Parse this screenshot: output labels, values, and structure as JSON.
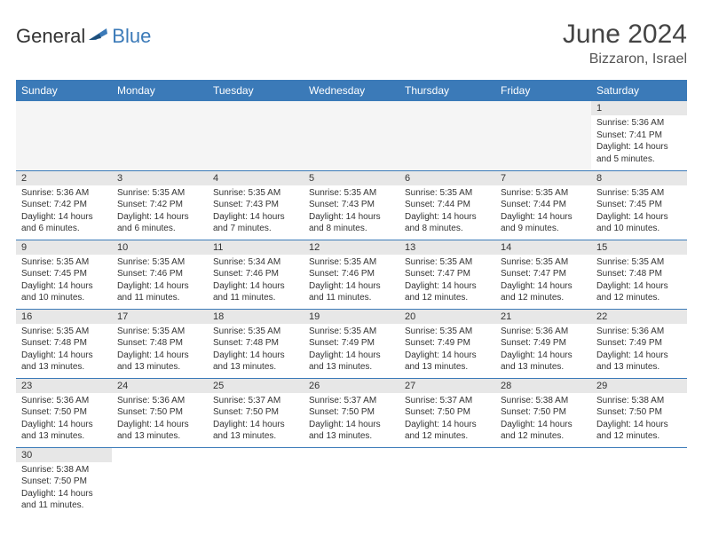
{
  "logo": {
    "general": "General",
    "blue": "Blue"
  },
  "header": {
    "month_title": "June 2024",
    "location": "Bizzaron, Israel"
  },
  "colors": {
    "header_bg": "#3b7ab8",
    "header_fg": "#ffffff",
    "daynum_bg": "#e7e7e7",
    "row_divider": "#3b7ab8",
    "text": "#333333"
  },
  "weekdays": [
    "Sunday",
    "Monday",
    "Tuesday",
    "Wednesday",
    "Thursday",
    "Friday",
    "Saturday"
  ],
  "weeks": [
    [
      null,
      null,
      null,
      null,
      null,
      null,
      {
        "n": "1",
        "sr": "5:36 AM",
        "ss": "7:41 PM",
        "dl": "14 hours and 5 minutes."
      }
    ],
    [
      {
        "n": "2",
        "sr": "5:36 AM",
        "ss": "7:42 PM",
        "dl": "14 hours and 6 minutes."
      },
      {
        "n": "3",
        "sr": "5:35 AM",
        "ss": "7:42 PM",
        "dl": "14 hours and 6 minutes."
      },
      {
        "n": "4",
        "sr": "5:35 AM",
        "ss": "7:43 PM",
        "dl": "14 hours and 7 minutes."
      },
      {
        "n": "5",
        "sr": "5:35 AM",
        "ss": "7:43 PM",
        "dl": "14 hours and 8 minutes."
      },
      {
        "n": "6",
        "sr": "5:35 AM",
        "ss": "7:44 PM",
        "dl": "14 hours and 8 minutes."
      },
      {
        "n": "7",
        "sr": "5:35 AM",
        "ss": "7:44 PM",
        "dl": "14 hours and 9 minutes."
      },
      {
        "n": "8",
        "sr": "5:35 AM",
        "ss": "7:45 PM",
        "dl": "14 hours and 10 minutes."
      }
    ],
    [
      {
        "n": "9",
        "sr": "5:35 AM",
        "ss": "7:45 PM",
        "dl": "14 hours and 10 minutes."
      },
      {
        "n": "10",
        "sr": "5:35 AM",
        "ss": "7:46 PM",
        "dl": "14 hours and 11 minutes."
      },
      {
        "n": "11",
        "sr": "5:34 AM",
        "ss": "7:46 PM",
        "dl": "14 hours and 11 minutes."
      },
      {
        "n": "12",
        "sr": "5:35 AM",
        "ss": "7:46 PM",
        "dl": "14 hours and 11 minutes."
      },
      {
        "n": "13",
        "sr": "5:35 AM",
        "ss": "7:47 PM",
        "dl": "14 hours and 12 minutes."
      },
      {
        "n": "14",
        "sr": "5:35 AM",
        "ss": "7:47 PM",
        "dl": "14 hours and 12 minutes."
      },
      {
        "n": "15",
        "sr": "5:35 AM",
        "ss": "7:48 PM",
        "dl": "14 hours and 12 minutes."
      }
    ],
    [
      {
        "n": "16",
        "sr": "5:35 AM",
        "ss": "7:48 PM",
        "dl": "14 hours and 13 minutes."
      },
      {
        "n": "17",
        "sr": "5:35 AM",
        "ss": "7:48 PM",
        "dl": "14 hours and 13 minutes."
      },
      {
        "n": "18",
        "sr": "5:35 AM",
        "ss": "7:48 PM",
        "dl": "14 hours and 13 minutes."
      },
      {
        "n": "19",
        "sr": "5:35 AM",
        "ss": "7:49 PM",
        "dl": "14 hours and 13 minutes."
      },
      {
        "n": "20",
        "sr": "5:35 AM",
        "ss": "7:49 PM",
        "dl": "14 hours and 13 minutes."
      },
      {
        "n": "21",
        "sr": "5:36 AM",
        "ss": "7:49 PM",
        "dl": "14 hours and 13 minutes."
      },
      {
        "n": "22",
        "sr": "5:36 AM",
        "ss": "7:49 PM",
        "dl": "14 hours and 13 minutes."
      }
    ],
    [
      {
        "n": "23",
        "sr": "5:36 AM",
        "ss": "7:50 PM",
        "dl": "14 hours and 13 minutes."
      },
      {
        "n": "24",
        "sr": "5:36 AM",
        "ss": "7:50 PM",
        "dl": "14 hours and 13 minutes."
      },
      {
        "n": "25",
        "sr": "5:37 AM",
        "ss": "7:50 PM",
        "dl": "14 hours and 13 minutes."
      },
      {
        "n": "26",
        "sr": "5:37 AM",
        "ss": "7:50 PM",
        "dl": "14 hours and 13 minutes."
      },
      {
        "n": "27",
        "sr": "5:37 AM",
        "ss": "7:50 PM",
        "dl": "14 hours and 12 minutes."
      },
      {
        "n": "28",
        "sr": "5:38 AM",
        "ss": "7:50 PM",
        "dl": "14 hours and 12 minutes."
      },
      {
        "n": "29",
        "sr": "5:38 AM",
        "ss": "7:50 PM",
        "dl": "14 hours and 12 minutes."
      }
    ],
    [
      {
        "n": "30",
        "sr": "5:38 AM",
        "ss": "7:50 PM",
        "dl": "14 hours and 11 minutes."
      },
      null,
      null,
      null,
      null,
      null,
      null
    ]
  ],
  "labels": {
    "sunrise_prefix": "Sunrise: ",
    "sunset_prefix": "Sunset: ",
    "daylight_prefix": "Daylight: "
  }
}
